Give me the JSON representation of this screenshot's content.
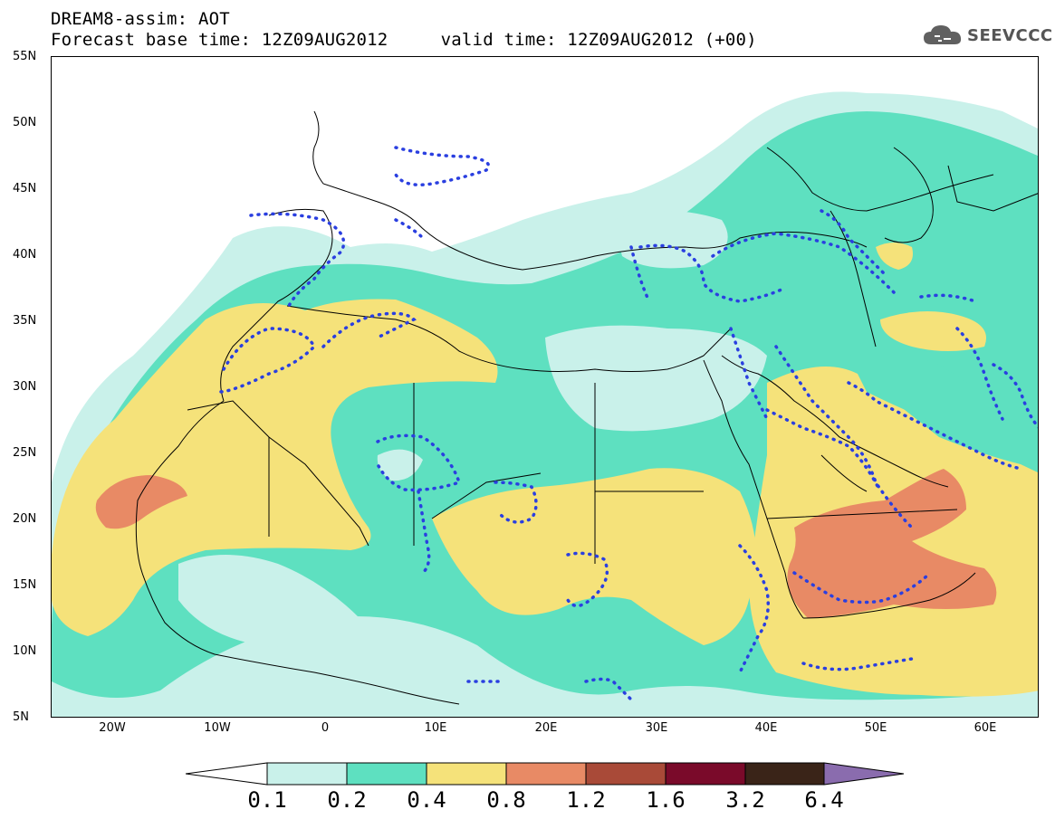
{
  "header": {
    "title_line1": "DREAM8-assim: AOT",
    "title_line2": "Forecast base time: 12Z09AUG2012     valid time: 12Z09AUG2012 (+00)",
    "logo_text": "SEEVCCC"
  },
  "map": {
    "projection": "lat-lon",
    "lon_range": [
      -25,
      65
    ],
    "lat_range": [
      5,
      55
    ],
    "lat_labels": [
      "55N",
      "50N",
      "45N",
      "40N",
      "35N",
      "30N",
      "25N",
      "20N",
      "15N",
      "10N",
      "5N"
    ],
    "lon_labels": [
      "20W",
      "10W",
      "0",
      "10E",
      "20E",
      "30E",
      "40E",
      "50E",
      "60E"
    ],
    "contour_line_color": "#2a3fe0",
    "coastline_color": "#000000"
  },
  "legend": {
    "labels": [
      "0.1",
      "0.2",
      "0.4",
      "0.8",
      "1.2",
      "1.6",
      "3.2",
      "6.4"
    ],
    "colors": [
      "#ffffff",
      "#c9f1ea",
      "#5ee0c0",
      "#f5e27a",
      "#e88a65",
      "#a94a38",
      "#7a0a2a",
      "#3a2418",
      "#8a6cae"
    ]
  }
}
